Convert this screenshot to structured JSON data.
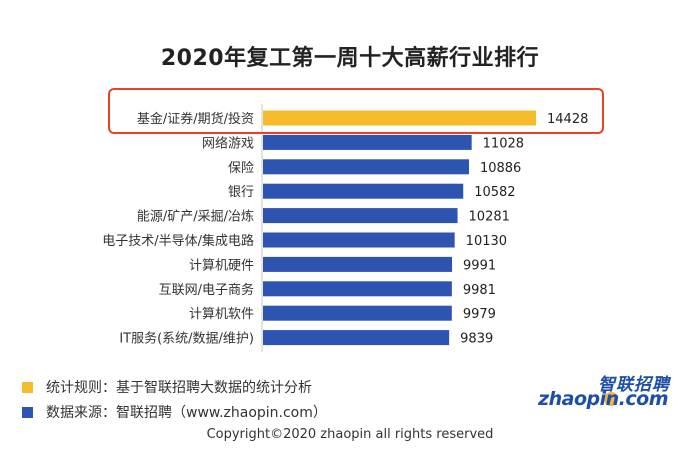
{
  "chart_data": {
    "type": "bar",
    "orientation": "horizontal",
    "title": "2020年复工第一周十大高薪行业排行",
    "categories": [
      "基金/证券/期货/投资",
      "网络游戏",
      "保险",
      "银行",
      "能源/矿产/采掘/冶炼",
      "电子技术/半导体/集成电路",
      "计算机硬件",
      "互联网/电子商务",
      "计算机软件",
      "IT服务(系统/数据/维护)"
    ],
    "values": [
      14428,
      11028,
      10886,
      10582,
      10281,
      10130,
      9991,
      9981,
      9979,
      9839
    ],
    "highlighted_index": 0,
    "grid": false,
    "colors": {
      "highlight": "#f5bd2b",
      "default": "#2d54b1",
      "frame": "#e8402b"
    }
  },
  "legend": {
    "rule": {
      "text": "统计规则：基于智联招聘大数据的统计分析",
      "color": "#f5bd2b"
    },
    "source": {
      "text": "数据来源：智联招聘（www.zhaopin.com）",
      "color": "#2d54b1"
    }
  },
  "footer": {
    "copyright": "Copyright©2020 zhaopin all rights reserved"
  },
  "logo": {
    "cn": "智联招聘",
    "en": "zhaopin.com"
  }
}
